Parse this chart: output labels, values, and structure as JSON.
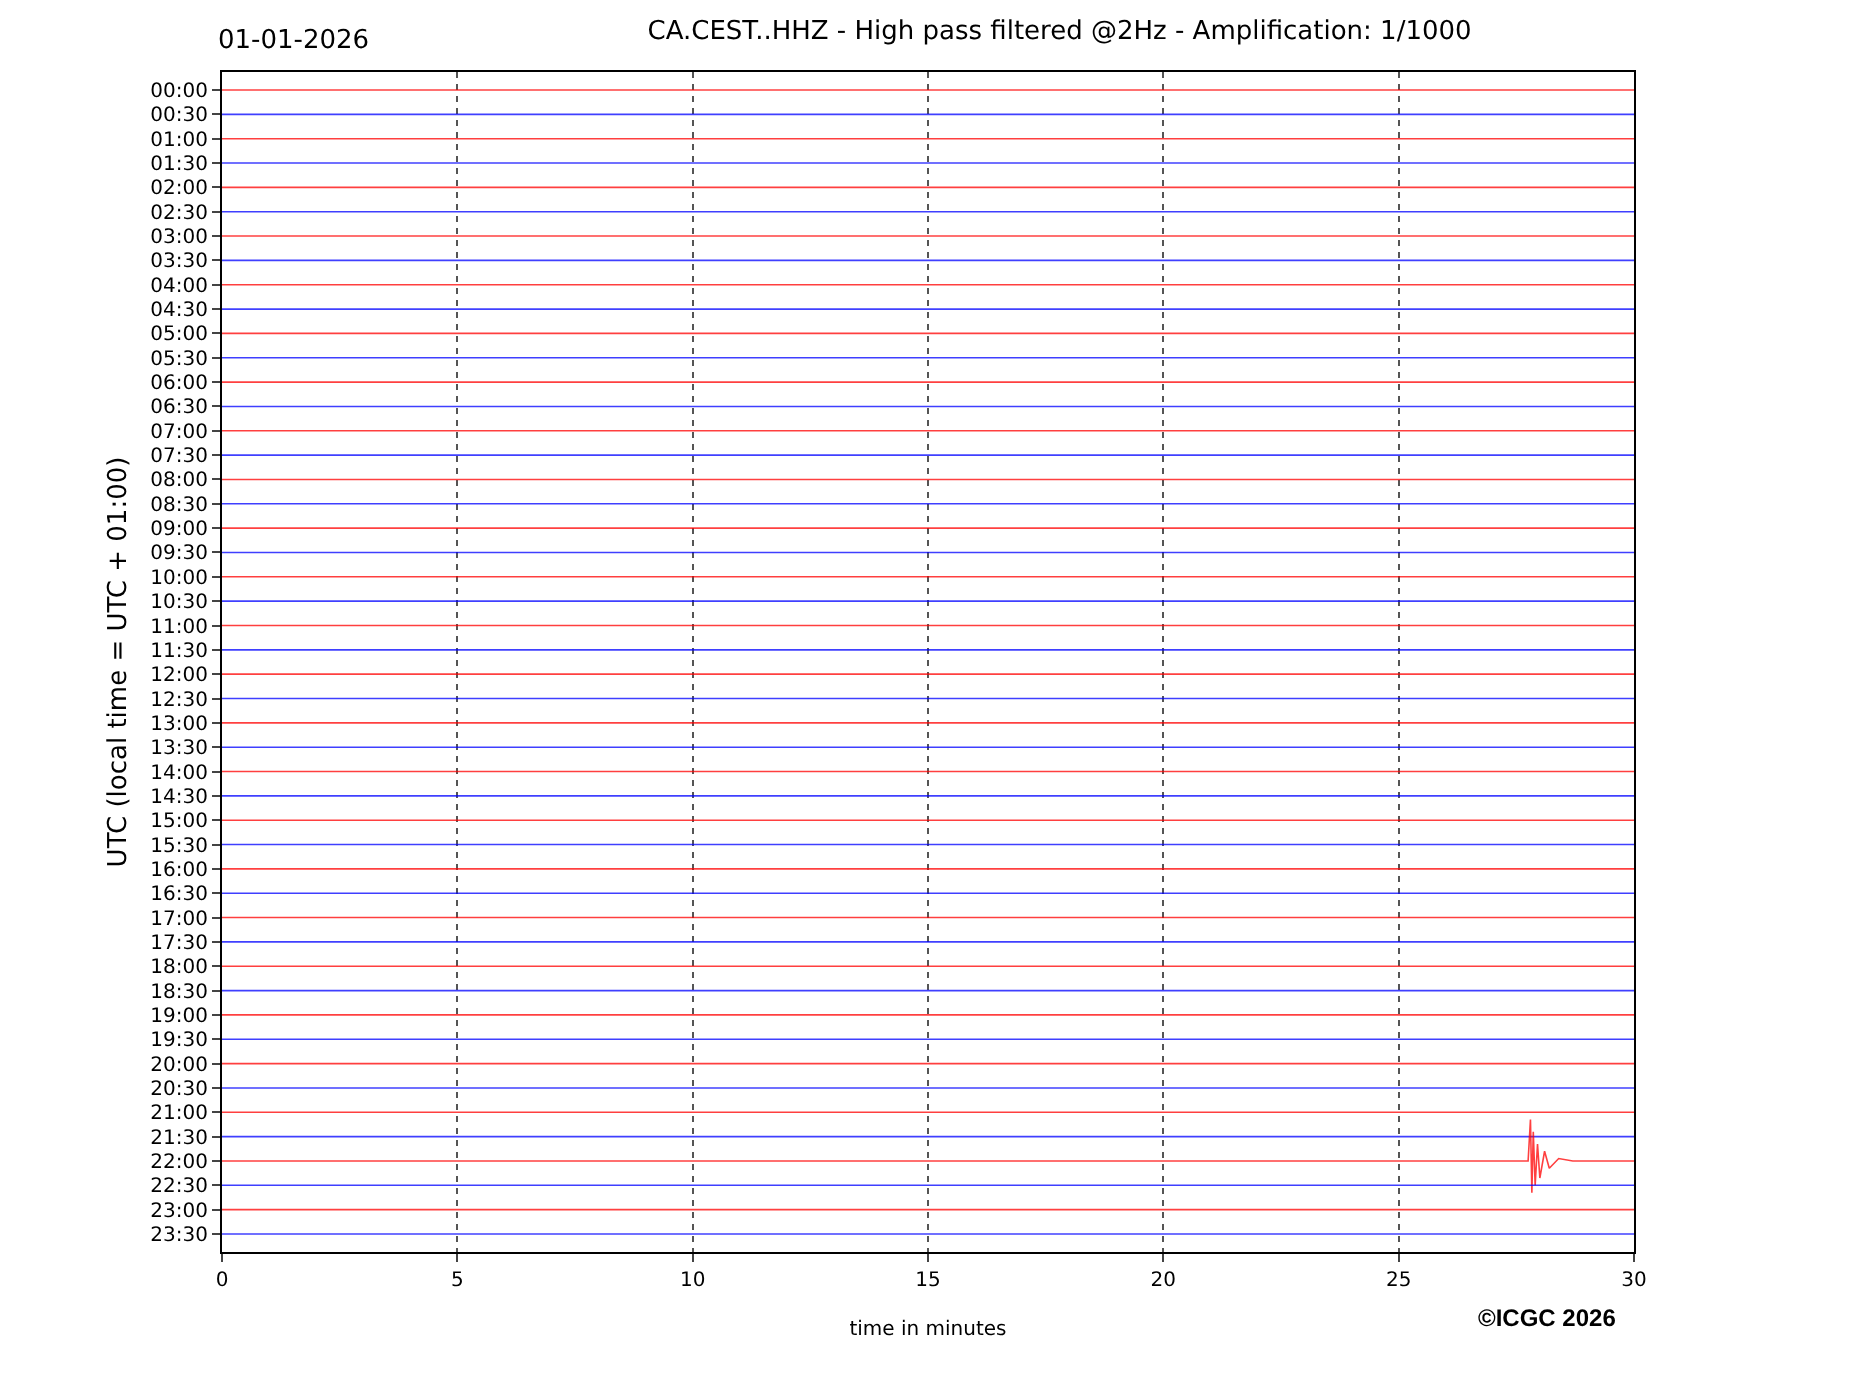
{
  "chart_data": {
    "type": "line",
    "title": "CA.CEST..HHZ - High pass filtered @2Hz - Amplification: 1/1000",
    "xlabel": "time in minutes",
    "ylabel": "UTC (local time = UTC + 01:00)",
    "annotations": [
      "01-01-2026",
      "©ICGC 2026"
    ],
    "xlim": [
      0,
      30
    ],
    "xticks": [
      0,
      5,
      10,
      15,
      20,
      25,
      30
    ],
    "ylim": [
      23.87,
      -0.37
    ],
    "yticks": [
      {
        "value": 0,
        "label": "00:00"
      },
      {
        "value": 0.5,
        "label": "00:30"
      },
      {
        "value": 1,
        "label": "01:00"
      },
      {
        "value": 1.5,
        "label": "01:30"
      },
      {
        "value": 2,
        "label": "02:00"
      },
      {
        "value": 2.5,
        "label": "02:30"
      },
      {
        "value": 3,
        "label": "03:00"
      },
      {
        "value": 3.5,
        "label": "03:30"
      },
      {
        "value": 4,
        "label": "04:00"
      },
      {
        "value": 4.5,
        "label": "04:30"
      },
      {
        "value": 5,
        "label": "05:00"
      },
      {
        "value": 5.5,
        "label": "05:30"
      },
      {
        "value": 6,
        "label": "06:00"
      },
      {
        "value": 6.5,
        "label": "06:30"
      },
      {
        "value": 7,
        "label": "07:00"
      },
      {
        "value": 7.5,
        "label": "07:30"
      },
      {
        "value": 8,
        "label": "08:00"
      },
      {
        "value": 8.5,
        "label": "08:30"
      },
      {
        "value": 9,
        "label": "09:00"
      },
      {
        "value": 9.5,
        "label": "09:30"
      },
      {
        "value": 10,
        "label": "10:00"
      },
      {
        "value": 10.5,
        "label": "10:30"
      },
      {
        "value": 11,
        "label": "11:00"
      },
      {
        "value": 11.5,
        "label": "11:30"
      },
      {
        "value": 12,
        "label": "12:00"
      },
      {
        "value": 12.5,
        "label": "12:30"
      },
      {
        "value": 13,
        "label": "13:00"
      },
      {
        "value": 13.5,
        "label": "13:30"
      },
      {
        "value": 14,
        "label": "14:00"
      },
      {
        "value": 14.5,
        "label": "14:30"
      },
      {
        "value": 15,
        "label": "15:00"
      },
      {
        "value": 15.5,
        "label": "15:30"
      },
      {
        "value": 16,
        "label": "16:00"
      },
      {
        "value": 16.5,
        "label": "16:30"
      },
      {
        "value": 17,
        "label": "17:00"
      },
      {
        "value": 17.5,
        "label": "17:30"
      },
      {
        "value": 18,
        "label": "18:00"
      },
      {
        "value": 18.5,
        "label": "18:30"
      },
      {
        "value": 19,
        "label": "19:00"
      },
      {
        "value": 19.5,
        "label": "19:30"
      },
      {
        "value": 20,
        "label": "20:00"
      },
      {
        "value": 20.5,
        "label": "20:30"
      },
      {
        "value": 21,
        "label": "21:00"
      },
      {
        "value": 21.5,
        "label": "21:30"
      },
      {
        "value": 22,
        "label": "22:00"
      },
      {
        "value": 22.5,
        "label": "22:30"
      },
      {
        "value": 23,
        "label": "23:00"
      },
      {
        "value": 23.5,
        "label": "23:30"
      }
    ],
    "grid": "x",
    "line_style": "solid",
    "series": [
      {
        "color": "#ff0000",
        "x": [
          0,
          30
        ],
        "values": [
          0,
          0
        ]
      },
      {
        "color": "#0000ff",
        "x": [
          0,
          30
        ],
        "values": [
          0.5,
          0.5
        ]
      },
      {
        "color": "#ff0000",
        "x": [
          0,
          30
        ],
        "values": [
          1,
          1
        ]
      },
      {
        "color": "#0000ff",
        "x": [
          0,
          30
        ],
        "values": [
          1.5,
          1.5
        ]
      },
      {
        "color": "#ff0000",
        "x": [
          0,
          30
        ],
        "values": [
          2,
          2
        ]
      },
      {
        "color": "#0000ff",
        "x": [
          0,
          30
        ],
        "values": [
          2.5,
          2.5
        ]
      },
      {
        "color": "#ff0000",
        "x": [
          0,
          30
        ],
        "values": [
          3,
          3
        ]
      },
      {
        "color": "#0000ff",
        "x": [
          0,
          30
        ],
        "values": [
          3.5,
          3.5
        ]
      },
      {
        "color": "#ff0000",
        "x": [
          0,
          30
        ],
        "values": [
          4,
          4
        ]
      },
      {
        "color": "#0000ff",
        "x": [
          0,
          30
        ],
        "values": [
          4.5,
          4.5
        ]
      },
      {
        "color": "#ff0000",
        "x": [
          0,
          30
        ],
        "values": [
          5,
          5
        ]
      },
      {
        "color": "#0000ff",
        "x": [
          0,
          30
        ],
        "values": [
          5.5,
          5.5
        ]
      },
      {
        "color": "#ff0000",
        "x": [
          0,
          30
        ],
        "values": [
          6,
          6
        ]
      },
      {
        "color": "#0000ff",
        "x": [
          0,
          30
        ],
        "values": [
          6.5,
          6.5
        ]
      },
      {
        "color": "#ff0000",
        "x": [
          0,
          30
        ],
        "values": [
          7,
          7
        ]
      },
      {
        "color": "#0000ff",
        "x": [
          0,
          30
        ],
        "values": [
          7.5,
          7.5
        ]
      },
      {
        "color": "#ff0000",
        "x": [
          0,
          30
        ],
        "values": [
          8,
          8
        ]
      },
      {
        "color": "#0000ff",
        "x": [
          0,
          30
        ],
        "values": [
          8.5,
          8.5
        ]
      },
      {
        "color": "#ff0000",
        "x": [
          0,
          30
        ],
        "values": [
          9,
          9
        ]
      },
      {
        "color": "#0000ff",
        "x": [
          0,
          30
        ],
        "values": [
          9.5,
          9.5
        ]
      },
      {
        "color": "#ff0000",
        "x": [
          0,
          30
        ],
        "values": [
          10,
          10
        ]
      },
      {
        "color": "#0000ff",
        "x": [
          0,
          30
        ],
        "values": [
          10.5,
          10.5
        ]
      },
      {
        "color": "#ff0000",
        "x": [
          0,
          30
        ],
        "values": [
          11,
          11
        ]
      },
      {
        "color": "#0000ff",
        "x": [
          0,
          30
        ],
        "values": [
          11.5,
          11.5
        ]
      },
      {
        "color": "#ff0000",
        "x": [
          0,
          30
        ],
        "values": [
          12,
          12
        ]
      },
      {
        "color": "#0000ff",
        "x": [
          0,
          30
        ],
        "values": [
          12.5,
          12.5
        ]
      },
      {
        "color": "#ff0000",
        "x": [
          0,
          30
        ],
        "values": [
          13,
          13
        ]
      },
      {
        "color": "#0000ff",
        "x": [
          0,
          30
        ],
        "values": [
          13.5,
          13.5
        ]
      },
      {
        "color": "#ff0000",
        "x": [
          0,
          30
        ],
        "values": [
          14,
          14
        ]
      },
      {
        "color": "#0000ff",
        "x": [
          0,
          30
        ],
        "values": [
          14.5,
          14.5
        ]
      },
      {
        "color": "#ff0000",
        "x": [
          0,
          30
        ],
        "values": [
          15,
          15
        ]
      },
      {
        "color": "#0000ff",
        "x": [
          0,
          30
        ],
        "values": [
          15.5,
          15.5
        ]
      },
      {
        "color": "#ff0000",
        "x": [
          0,
          30
        ],
        "values": [
          16,
          16
        ]
      },
      {
        "color": "#0000ff",
        "x": [
          0,
          30
        ],
        "values": [
          16.5,
          16.5
        ]
      },
      {
        "color": "#ff0000",
        "x": [
          0,
          30
        ],
        "values": [
          17,
          17
        ]
      },
      {
        "color": "#0000ff",
        "x": [
          0,
          30
        ],
        "values": [
          17.5,
          17.5
        ]
      },
      {
        "color": "#ff0000",
        "x": [
          0,
          30
        ],
        "values": [
          18,
          18
        ]
      },
      {
        "color": "#0000ff",
        "x": [
          0,
          30
        ],
        "values": [
          18.5,
          18.5
        ]
      },
      {
        "color": "#ff0000",
        "x": [
          0,
          30
        ],
        "values": [
          19,
          19
        ]
      },
      {
        "color": "#0000ff",
        "x": [
          0,
          30
        ],
        "values": [
          19.5,
          19.5
        ]
      },
      {
        "color": "#ff0000",
        "x": [
          0,
          30
        ],
        "values": [
          20,
          20
        ]
      },
      {
        "color": "#0000ff",
        "x": [
          0,
          30
        ],
        "values": [
          20.5,
          20.5
        ]
      },
      {
        "color": "#ff0000",
        "x": [
          0,
          30
        ],
        "values": [
          21,
          21
        ]
      },
      {
        "color": "#0000ff",
        "x": [
          0,
          30
        ],
        "values": [
          21.5,
          21.5
        ]
      },
      {
        "color": "#ff0000",
        "x": [
          0,
          27.75,
          27.8,
          27.83,
          27.86,
          27.9,
          27.95,
          28.0,
          28.1,
          28.2,
          28.4,
          28.7,
          30
        ],
        "values": [
          22,
          22,
          21.15,
          22.65,
          21.4,
          22.5,
          21.65,
          22.35,
          21.8,
          22.15,
          21.95,
          22,
          22
        ]
      },
      {
        "color": "#0000ff",
        "x": [
          0,
          30
        ],
        "values": [
          22.5,
          22.5
        ]
      },
      {
        "color": "#ff0000",
        "x": [
          0,
          30
        ],
        "values": [
          23,
          23
        ]
      },
      {
        "color": "#0000ff",
        "x": [
          0,
          30
        ],
        "values": [
          23.5,
          23.5
        ]
      }
    ]
  }
}
